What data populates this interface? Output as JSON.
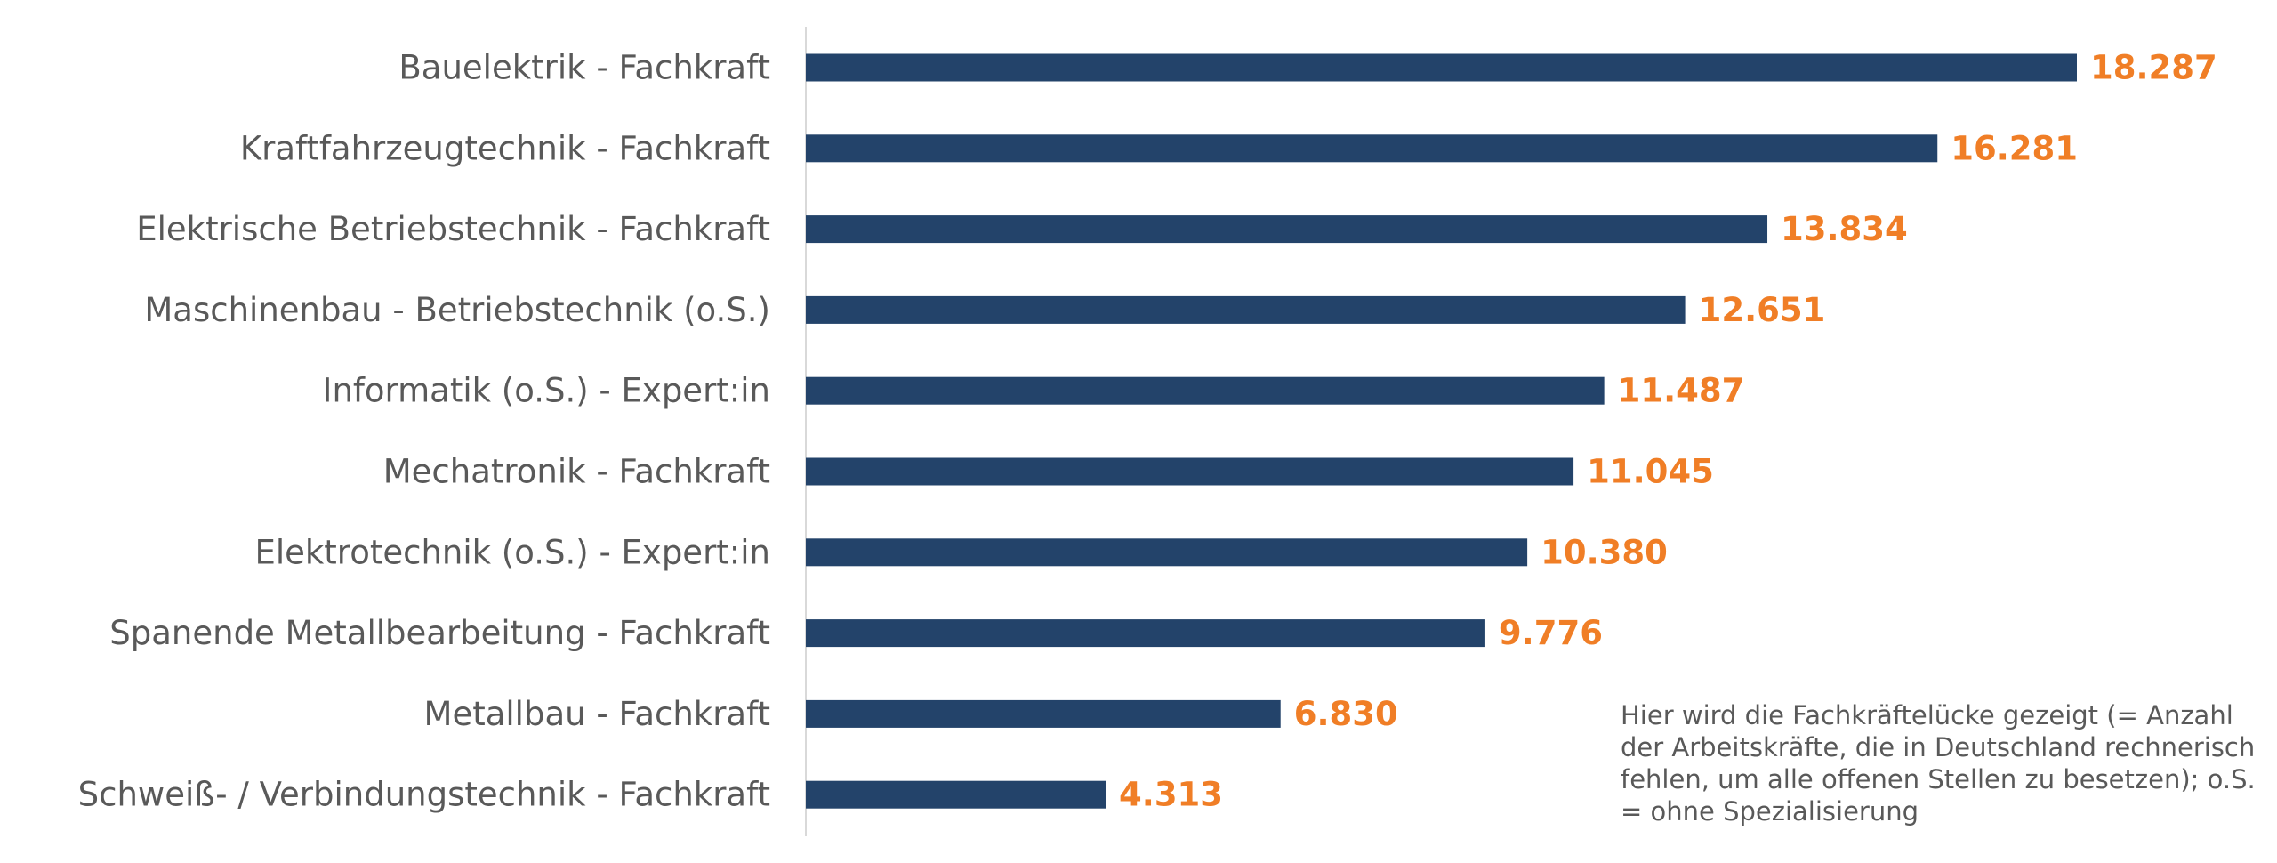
{
  "chart_data": {
    "type": "bar",
    "orientation": "horizontal",
    "categories": [
      "Bauelektrik - Fachkraft",
      "Kraftfahrzeugtechnik - Fachkraft",
      "Elektrische Betriebstechnik - Fachkraft",
      "Maschinenbau - Betriebstechnik (o.S.)",
      "Informatik (o.S.) - Expert:in",
      "Mechatronik - Fachkraft",
      "Elektrotechnik (o.S.) - Expert:in",
      "Spanende Metallbearbeitung - Fachkraft",
      "Metallbau - Fachkraft",
      "Schweiß- / Verbindungstechnik - Fachkraft"
    ],
    "values": [
      18287,
      16281,
      13834,
      12651,
      11487,
      11045,
      10380,
      9776,
      6830,
      4313
    ],
    "value_labels": [
      "18.287",
      "16.281",
      "13.834",
      "12.651",
      "11.487",
      "11.045",
      "10.380",
      "9.776",
      "6.830",
      "4.313"
    ],
    "xlim": [
      0,
      20000
    ],
    "grid": false,
    "legend": "none",
    "bar_color": "#23436a",
    "value_label_color": "#f07e26",
    "category_label_color": "#595959",
    "axis_line_color": "#d9d9d9"
  },
  "note": "Hier wird die Fachkräftelücke gezeigt (= Anzahl der Arbeitskräfte, die in Deutschland rechnerisch fehlen, um alle offenen Stellen zu besetzen); o.S. = ohne Spezialisierung"
}
